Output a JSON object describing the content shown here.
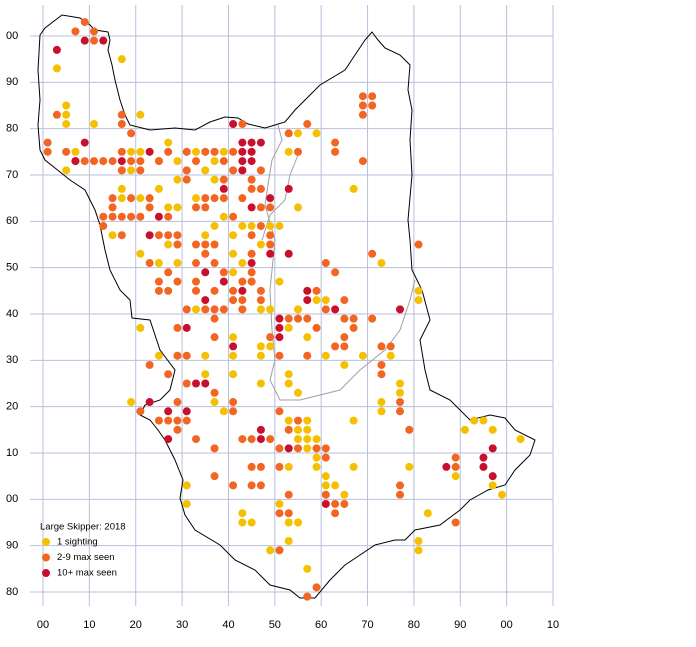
{
  "chart_data": {
    "type": "scatter",
    "legend_title": "Large Skipper:  2018",
    "legend": "lower left",
    "grid": true,
    "xlim": [
      0,
      110
    ],
    "ylim": [
      80,
      200
    ],
    "xticks": [
      {
        "value": 0,
        "label": "00"
      },
      10,
      20,
      30,
      40,
      50,
      60,
      70,
      80,
      90,
      {
        "value": 100,
        "label": "00"
      },
      {
        "value": 110,
        "label": "10"
      }
    ],
    "yticks": [
      80,
      90,
      {
        "value": 100,
        "label": "00"
      },
      {
        "value": 110,
        "label": "10"
      },
      {
        "value": 120,
        "label": "20"
      },
      {
        "value": 130,
        "label": "30"
      },
      {
        "value": 140,
        "label": "40"
      },
      {
        "value": 150,
        "label": "50"
      },
      {
        "value": 160,
        "label": "60"
      },
      {
        "value": 170,
        "label": "70"
      },
      {
        "value": 180,
        "label": "80"
      },
      {
        "value": 190,
        "label": "90"
      },
      {
        "value": 200,
        "label": "00"
      }
    ],
    "series": [
      {
        "name": "1 sighting",
        "color": "#f5c000",
        "x": [
          3,
          5,
          5,
          11,
          17,
          21,
          5,
          7,
          19,
          21,
          17,
          17,
          19,
          25,
          27,
          29,
          25,
          21,
          27,
          29,
          15,
          21,
          27,
          25,
          29,
          21,
          25,
          29,
          33,
          35,
          35,
          37,
          39,
          41,
          41,
          47,
          49,
          47,
          53,
          47,
          53,
          55,
          53,
          55,
          57,
          57,
          55,
          57,
          57,
          59,
          59,
          59,
          61,
          61,
          63,
          65,
          67,
          53,
          51,
          53,
          55,
          53,
          49,
          51,
          57,
          67,
          73,
          73,
          77,
          77,
          79,
          81,
          81,
          83,
          89,
          91,
          93,
          95,
          97,
          99,
          103,
          97,
          33,
          35,
          39,
          37,
          39,
          37,
          35,
          41,
          41,
          43,
          41,
          47,
          49,
          51,
          55,
          53,
          55,
          59,
          67,
          73,
          59,
          61,
          55,
          53,
          57,
          61,
          65,
          69,
          75,
          81,
          81,
          29,
          33,
          37,
          43,
          45,
          51,
          45,
          47,
          49,
          41,
          19,
          31,
          31,
          43,
          43,
          45,
          5
        ],
        "y": [
          193,
          185,
          183,
          181,
          195,
          183,
          171,
          175,
          175,
          175,
          167,
          165,
          171,
          173,
          177,
          169,
          167,
          165,
          163,
          163,
          157,
          153,
          155,
          151,
          151,
          137,
          131,
          131,
          141,
          131,
          127,
          121,
          119,
          127,
          131,
          133,
          133,
          131,
          127,
          125,
          125,
          123,
          117,
          115,
          117,
          115,
          113,
          113,
          111,
          113,
          109,
          107,
          105,
          103,
          103,
          101,
          107,
          107,
          99,
          95,
          95,
          91,
          89,
          89,
          85,
          117,
          119,
          121,
          123,
          125,
          107,
          91,
          89,
          97,
          105,
          115,
          117,
          117,
          115,
          101,
          113,
          103,
          175,
          171,
          175,
          169,
          161,
          159,
          157,
          157,
          153,
          151,
          149,
          155,
          159,
          159,
          163,
          175,
          179,
          179,
          167,
          151,
          143,
          143,
          141,
          137,
          135,
          131,
          129,
          131,
          131,
          145,
          143,
          173,
          165,
          173,
          159,
          159,
          147,
          147,
          141,
          141,
          135,
          121,
          103,
          99,
          97,
          95,
          95,
          181
        ]
      },
      {
        "name": "2-9 max seen",
        "color": "#f26522",
        "x": [
          7,
          9,
          11,
          11,
          3,
          1,
          1,
          5,
          7,
          9,
          11,
          13,
          15,
          17,
          17,
          17,
          19,
          19,
          21,
          25,
          27,
          15,
          15,
          17,
          19,
          19,
          21,
          23,
          23,
          27,
          25,
          27,
          29,
          29,
          23,
          25,
          25,
          27,
          27,
          29,
          33,
          35,
          33,
          35,
          37,
          37,
          33,
          33,
          35,
          37,
          39,
          37,
          41,
          41,
          43,
          43,
          45,
          45,
          47,
          47,
          43,
          39,
          33,
          31,
          31,
          31,
          33,
          35,
          37,
          39,
          37,
          35,
          35,
          39,
          39,
          41,
          41,
          41,
          47,
          47,
          47,
          49,
          45,
          45,
          43,
          47,
          45,
          49,
          49,
          45,
          55,
          57,
          63,
          63,
          69,
          71,
          69,
          71,
          69,
          69,
          71,
          61,
          63,
          65,
          59,
          61,
          55,
          57,
          53,
          59,
          57,
          49,
          51,
          65,
          67,
          67,
          65,
          63,
          65,
          73,
          71,
          75,
          73,
          73,
          77,
          77,
          77,
          77,
          79,
          81,
          89,
          89,
          89,
          63,
          63,
          65,
          61,
          55,
          53,
          51,
          51,
          53,
          57,
          59,
          45,
          47,
          51,
          45,
          47,
          45,
          49,
          51,
          53,
          61,
          61,
          59,
          55,
          51,
          41,
          41,
          37,
          31,
          29,
          29,
          31,
          25,
          21,
          33,
          29,
          23,
          27,
          29,
          31,
          37,
          37,
          31,
          29,
          17,
          13,
          13,
          15,
          43,
          41,
          37,
          37,
          27,
          53,
          17,
          21,
          43
        ],
        "y": [
          201,
          203,
          201,
          199,
          183,
          177,
          175,
          175,
          173,
          173,
          173,
          173,
          173,
          175,
          183,
          181,
          179,
          173,
          173,
          173,
          175,
          161,
          163,
          161,
          165,
          161,
          161,
          165,
          163,
          161,
          157,
          157,
          157,
          155,
          151,
          147,
          145,
          145,
          149,
          147,
          151,
          155,
          155,
          153,
          155,
          151,
          147,
          145,
          141,
          141,
          141,
          145,
          145,
          143,
          147,
          143,
          149,
          147,
          143,
          145,
          141,
          149,
          163,
          169,
          171,
          175,
          173,
          175,
          175,
          173,
          165,
          165,
          163,
          169,
          165,
          161,
          175,
          171,
          171,
          167,
          163,
          163,
          169,
          167,
          165,
          159,
          157,
          157,
          155,
          153,
          175,
          181,
          177,
          175,
          187,
          187,
          185,
          185,
          183,
          173,
          153,
          151,
          149,
          143,
          145,
          141,
          139,
          139,
          139,
          137,
          131,
          135,
          131,
          139,
          139,
          137,
          135,
          133,
          133,
          133,
          139,
          133,
          129,
          127,
          121,
          119,
          103,
          101,
          115,
          155,
          109,
          107,
          95,
          99,
          97,
          99,
          101,
          111,
          101,
          97,
          89,
          97,
          79,
          81,
          107,
          107,
          107,
          103,
          103,
          113,
          113,
          111,
          115,
          109,
          111,
          111,
          117,
          119,
          119,
          121,
          123,
          125,
          121,
          117,
          117,
          117,
          119,
          113,
          115,
          129,
          127,
          131,
          131,
          135,
          139,
          141,
          137,
          157,
          159,
          161,
          165,
          113,
          103,
          105,
          111,
          117,
          179,
          171,
          171,
          181
        ]
      },
      {
        "name": "10+ max seen",
        "color": "#c8102e",
        "x": [
          3,
          9,
          13,
          7,
          9,
          17,
          23,
          25,
          23,
          41,
          43,
          43,
          43,
          43,
          45,
          45,
          45,
          47,
          39,
          49,
          53,
          45,
          49,
          53,
          45,
          35,
          39,
          43,
          35,
          57,
          57,
          63,
          77,
          51,
          51,
          51,
          41,
          31,
          33,
          35,
          23,
          27,
          31,
          27,
          47,
          47,
          53,
          61,
          87,
          95,
          95,
          97,
          97
        ],
        "y": [
          197,
          199,
          199,
          173,
          177,
          173,
          175,
          161,
          157,
          181,
          177,
          175,
          173,
          171,
          177,
          175,
          173,
          177,
          167,
          165,
          167,
          163,
          153,
          153,
          151,
          149,
          147,
          145,
          143,
          145,
          143,
          141,
          141,
          139,
          137,
          135,
          133,
          137,
          125,
          125,
          121,
          119,
          119,
          113,
          115,
          113,
          111,
          99,
          107,
          109,
          107,
          111,
          105
        ]
      }
    ]
  }
}
